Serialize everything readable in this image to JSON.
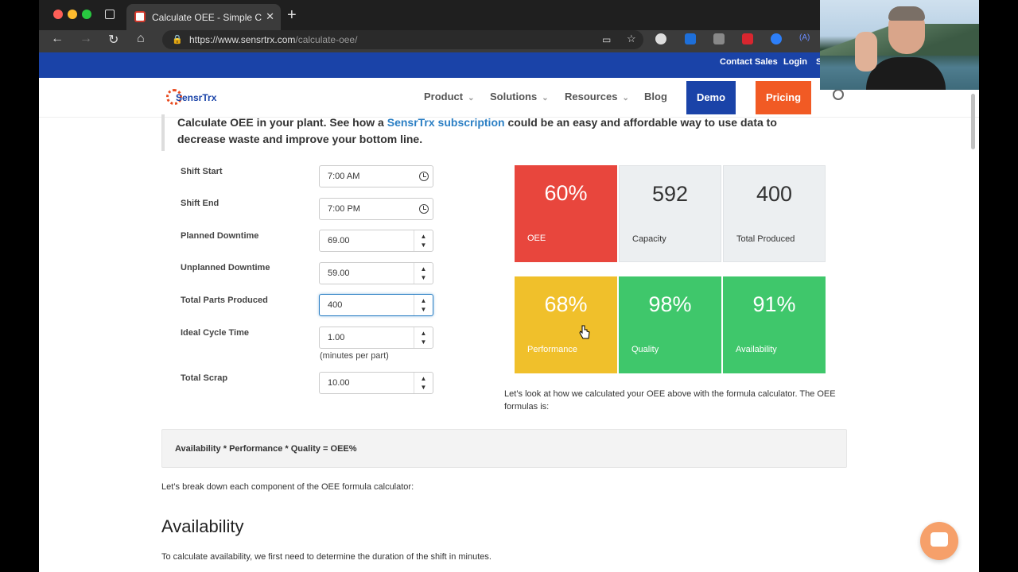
{
  "browser": {
    "tab_title": "Calculate OEE - Simple Calcul",
    "url_host": "https://www.sensrtrx.com",
    "url_path": "/calculate-oee/"
  },
  "topbar": {
    "contact_sales": "Contact Sales",
    "login": "Login",
    "cut_link": "S"
  },
  "header": {
    "logo_text": "SensrTrx",
    "menu": [
      {
        "label": "Product"
      },
      {
        "label": "Solutions"
      },
      {
        "label": "Resources"
      },
      {
        "label": "Blog"
      }
    ],
    "demo": "Demo",
    "pricing": "Pricing"
  },
  "intro": {
    "text_before": "Calculate OEE in your plant. See how a ",
    "link": "SensrTrx subscription",
    "text_after": " could be an easy and affordable way to use data to decrease waste and improve your bottom line."
  },
  "form": {
    "fields": [
      {
        "label": "Shift Start",
        "value": "7:00 AM"
      },
      {
        "label": "Shift End",
        "value": "7:00 PM"
      },
      {
        "label": "Planned Downtime",
        "value": "69.00"
      },
      {
        "label": "Unplanned Downtime",
        "value": "59.00"
      },
      {
        "label": "Total Parts Produced",
        "value": "400"
      },
      {
        "label": "Ideal Cycle Time",
        "value": "1.00"
      },
      {
        "label": "Total Scrap",
        "value": "10.00"
      }
    ],
    "cycle_hint": "(minutes per part)"
  },
  "tiles": [
    {
      "value": "60%",
      "label": "OEE",
      "color": "#e8463d"
    },
    {
      "value": "592",
      "label": "Capacity",
      "color": "#eceff1"
    },
    {
      "value": "400",
      "label": "Total Produced",
      "color": "#eceff1"
    },
    {
      "value": "68%",
      "label": "Performance",
      "color": "#f0c02b"
    },
    {
      "value": "98%",
      "label": "Quality",
      "color": "#3fc76b"
    },
    {
      "value": "91%",
      "label": "Availability",
      "color": "#3fc76b"
    }
  ],
  "content": {
    "formula_intro": "Let’s look at how we calculated your OEE above with the formula calculator. The OEE formulas is:",
    "formula": "Availability * Performance * Quality = OEE%",
    "breakdown": "Let’s break down each component of the OEE formula calculator:",
    "availability_heading": "Availability",
    "availability_text": "To calculate availability, we first need to determine the duration of the shift in minutes."
  },
  "colors": {
    "brand_blue": "#1a43a8",
    "brand_orange": "#f15a24",
    "link": "#2b7fc4"
  }
}
